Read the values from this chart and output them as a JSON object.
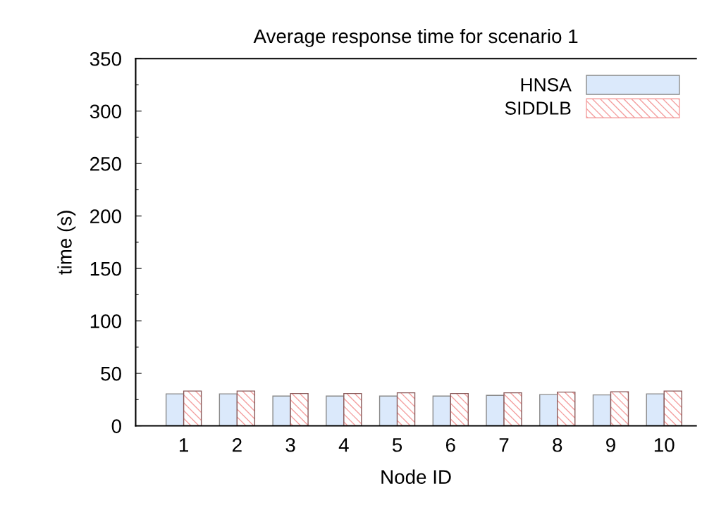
{
  "chart_data": {
    "type": "bar",
    "title": "Average response time for scenario 1",
    "xlabel": "Node ID",
    "ylabel": "time (s)",
    "categories": [
      "1",
      "2",
      "3",
      "4",
      "5",
      "6",
      "7",
      "8",
      "9",
      "10"
    ],
    "series": [
      {
        "name": "HNSA",
        "color": "#dbe9fb",
        "values": [
          30.5,
          30.5,
          28.4,
          28.4,
          28.4,
          28.4,
          29.1,
          29.8,
          29.5,
          30.5
        ]
      },
      {
        "name": "SIDDLB",
        "color": "#f4a0a0",
        "values": [
          33.2,
          33.2,
          30.8,
          30.8,
          31.5,
          30.8,
          31.5,
          32.2,
          32.5,
          33.2
        ]
      }
    ],
    "ylim": [
      0,
      350
    ],
    "yticks": [
      0,
      {
        "value": 25,
        "label": null
      },
      50,
      {
        "value": 75,
        "label": null
      },
      100,
      {
        "value": 125,
        "label": null
      },
      150,
      {
        "value": 175,
        "label": null
      },
      200,
      {
        "value": 225,
        "label": null
      },
      250,
      {
        "value": 275,
        "label": null
      },
      300,
      {
        "value": 325,
        "label": null
      },
      350
    ],
    "legend": "top right",
    "grid": false
  }
}
